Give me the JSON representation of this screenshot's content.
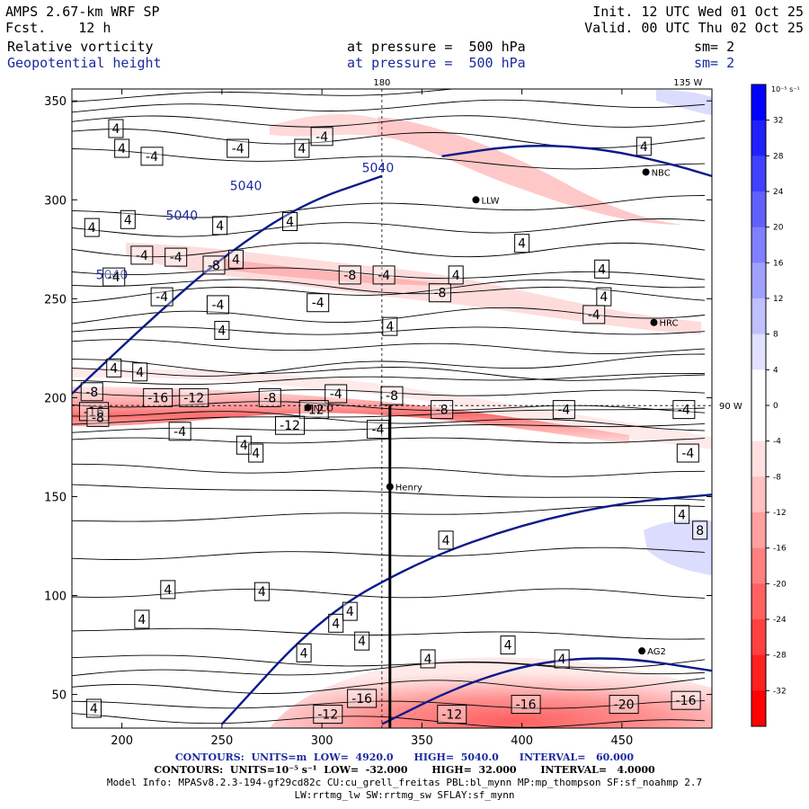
{
  "header": {
    "model": "AMPS 2.67-km WRF SP",
    "fcst": "Fcst.    12 h",
    "init": "Init. 12 UTC Wed 01 Oct 25",
    "valid": "Valid. 00 UTC Thu 02 Oct 25",
    "field1": "Relative vorticity",
    "field1_level": "at pressure =  500 hPa",
    "field1_sm": "sm= 2",
    "field2": "Geopotential height",
    "field2_level": "at pressure =  500 hPa",
    "field2_sm": "sm= 2"
  },
  "footer": {
    "line1": "CONTOURS:  UNITS=m  LOW=  4920.0      HIGH=  5040.0      INTERVAL=   60.000",
    "line2": "CONTOURS:  UNITS=10⁻⁵ s⁻¹  LOW=  -32.000       HIGH=  32.000       INTERVAL=   4.0000",
    "line3": "Model Info: MPASv8.2.3-194-gf29cd82c CU:cu_grell_freitas PBL:bl_mynn MP:mp_thompson SF:sf_noahmp 2.7",
    "line4": "LW:rrtmg_lw SW:rrtmg_sw SFLAY:sf_mynn"
  },
  "chart_data": {
    "type": "heatmap",
    "title": "500 hPa relative vorticity and geopotential height",
    "xlim": [
      175,
      495
    ],
    "ylim": [
      33,
      356
    ],
    "x_ticks": [
      200,
      250,
      300,
      350,
      400,
      450
    ],
    "y_ticks": [
      50,
      100,
      150,
      200,
      250,
      300,
      350
    ],
    "top_labels": [
      {
        "text": "180",
        "x": 330
      },
      {
        "text": "135 W",
        "x": 483
      }
    ],
    "right_labels": [
      {
        "text": "90 W",
        "y": 196
      }
    ],
    "stations": [
      {
        "name": "NCO",
        "x": 293,
        "y": 195
      },
      {
        "name": "Henry",
        "x": 334,
        "y": 155
      },
      {
        "name": "HRC",
        "x": 466,
        "y": 238
      },
      {
        "name": "AG2",
        "x": 460,
        "y": 72
      },
      {
        "name": "NBC",
        "x": 462,
        "y": 314
      },
      {
        "name": "LLW",
        "x": 377,
        "y": 300
      }
    ],
    "height_contours": [
      {
        "value": "5040",
        "points": [
          [
            175,
            202
          ],
          [
            215,
            240
          ],
          [
            250,
            271
          ],
          [
            290,
            298
          ],
          [
            330,
            312
          ]
        ]
      },
      {
        "value": "5040",
        "points": [
          [
            360,
            322
          ],
          [
            400,
            328
          ],
          [
            440,
            326
          ],
          [
            475,
            318
          ],
          [
            495,
            312
          ]
        ]
      },
      {
        "value": "",
        "points": [
          [
            250,
            35
          ],
          [
            300,
            90
          ],
          [
            350,
            118
          ],
          [
            400,
            136
          ],
          [
            450,
            147
          ],
          [
            495,
            151
          ]
        ]
      },
      {
        "value": "",
        "points": [
          [
            330,
            35
          ],
          [
            370,
            55
          ],
          [
            410,
            67
          ],
          [
            450,
            69
          ],
          [
            495,
            62
          ]
        ]
      }
    ],
    "vorticity_bands": [
      {
        "name": "strong negative band",
        "y_center": 196,
        "min": -16
      },
      {
        "name": "moderate negative band",
        "y_center": 258,
        "min": -8
      },
      {
        "name": "southern negative lobe",
        "y_center": 45,
        "min": -20
      }
    ],
    "contour_labels": [
      {
        "text": "4",
        "x": 197,
        "y": 336
      },
      {
        "text": "4",
        "x": 200,
        "y": 326
      },
      {
        "text": "-4",
        "x": 215,
        "y": 322
      },
      {
        "text": "-4",
        "x": 258,
        "y": 326
      },
      {
        "text": "-4",
        "x": 300,
        "y": 332
      },
      {
        "text": "4",
        "x": 290,
        "y": 326
      },
      {
        "text": "4",
        "x": 185,
        "y": 286
      },
      {
        "text": "4",
        "x": 203,
        "y": 290
      },
      {
        "text": "4",
        "x": 249,
        "y": 287
      },
      {
        "text": "4",
        "x": 284,
        "y": 289
      },
      {
        "text": "-4",
        "x": 210,
        "y": 272
      },
      {
        "text": "-4",
        "x": 227,
        "y": 271
      },
      {
        "text": "-8",
        "x": 246,
        "y": 267
      },
      {
        "text": "4",
        "x": 257,
        "y": 270
      },
      {
        "text": "-4",
        "x": 196,
        "y": 261
      },
      {
        "text": "-4",
        "x": 220,
        "y": 251
      },
      {
        "text": "-4",
        "x": 248,
        "y": 247
      },
      {
        "text": "-4",
        "x": 298,
        "y": 248
      },
      {
        "text": "-8",
        "x": 314,
        "y": 262
      },
      {
        "text": "-4",
        "x": 331,
        "y": 262
      },
      {
        "text": "-8",
        "x": 359,
        "y": 253
      },
      {
        "text": "4",
        "x": 367,
        "y": 262
      },
      {
        "text": "4",
        "x": 400,
        "y": 278
      },
      {
        "text": "4",
        "x": 440,
        "y": 265
      },
      {
        "text": "4",
        "x": 441,
        "y": 251
      },
      {
        "text": "-4",
        "x": 436,
        "y": 242
      },
      {
        "text": "4",
        "x": 461,
        "y": 327
      },
      {
        "text": "4",
        "x": 250,
        "y": 234
      },
      {
        "text": "4",
        "x": 334,
        "y": 236
      },
      {
        "text": "4",
        "x": 196,
        "y": 215
      },
      {
        "text": "4",
        "x": 209,
        "y": 213
      },
      {
        "text": "-8",
        "x": 185,
        "y": 203
      },
      {
        "text": "-16",
        "x": 218,
        "y": 200
      },
      {
        "text": "-12",
        "x": 236,
        "y": 200
      },
      {
        "text": "-8",
        "x": 274,
        "y": 200
      },
      {
        "text": "-4",
        "x": 307,
        "y": 202
      },
      {
        "text": "-8",
        "x": 335,
        "y": 201
      },
      {
        "text": "-16",
        "x": 186,
        "y": 193
      },
      {
        "text": "-12",
        "x": 296,
        "y": 194
      },
      {
        "text": "-12",
        "x": 284,
        "y": 186
      },
      {
        "text": "-8",
        "x": 360,
        "y": 194
      },
      {
        "text": "-4",
        "x": 421,
        "y": 194
      },
      {
        "text": "-4",
        "x": 481,
        "y": 194
      },
      {
        "text": "-8",
        "x": 188,
        "y": 190
      },
      {
        "text": "-4",
        "x": 229,
        "y": 183
      },
      {
        "text": "-4",
        "x": 328,
        "y": 184
      },
      {
        "text": "4",
        "x": 261,
        "y": 176
      },
      {
        "text": "4",
        "x": 267,
        "y": 172
      },
      {
        "text": "-4",
        "x": 483,
        "y": 172
      },
      {
        "text": "4",
        "x": 480,
        "y": 141
      },
      {
        "text": "8",
        "x": 489,
        "y": 133
      },
      {
        "text": "4",
        "x": 362,
        "y": 128
      },
      {
        "text": "4",
        "x": 223,
        "y": 103
      },
      {
        "text": "4",
        "x": 270,
        "y": 102
      },
      {
        "text": "4",
        "x": 210,
        "y": 88
      },
      {
        "text": "4",
        "x": 314,
        "y": 92
      },
      {
        "text": "4",
        "x": 307,
        "y": 86
      },
      {
        "text": "4",
        "x": 320,
        "y": 77
      },
      {
        "text": "4",
        "x": 393,
        "y": 75
      },
      {
        "text": "4",
        "x": 291,
        "y": 71
      },
      {
        "text": "4",
        "x": 353,
        "y": 68
      },
      {
        "text": "4",
        "x": 420,
        "y": 68
      },
      {
        "text": "4",
        "x": 186,
        "y": 43
      },
      {
        "text": "-16",
        "x": 320,
        "y": 48
      },
      {
        "text": "-12",
        "x": 303,
        "y": 40
      },
      {
        "text": "-12",
        "x": 365,
        "y": 40
      },
      {
        "text": "-16",
        "x": 402,
        "y": 45
      },
      {
        "text": "-20",
        "x": 451,
        "y": 45
      },
      {
        "text": "-16",
        "x": 482,
        "y": 47
      }
    ]
  },
  "colorbar": {
    "unit": "10⁻⁵ s⁻¹",
    "levels": [
      "36",
      "32",
      "28",
      "24",
      "20",
      "16",
      "12",
      "8",
      "4",
      "0",
      "-4",
      "-8",
      "-12",
      "-16",
      "-20",
      "-24",
      "-28",
      "-32",
      "-36"
    ],
    "colors": [
      "#0000ff",
      "#2020ff",
      "#4040ff",
      "#6060ff",
      "#8080ff",
      "#a0a0ff",
      "#c0c0ff",
      "#e0e0ff",
      "#ffffff",
      "#ffffff",
      "#ffe0e0",
      "#ffc0c0",
      "#ffa0a0",
      "#ff8080",
      "#ff6060",
      "#ff4040",
      "#ff2020",
      "#ff0000"
    ],
    "tick_labels": [
      "32",
      "28",
      "24",
      "20",
      "16",
      "12",
      "8",
      "4",
      "0",
      "-4",
      "-8",
      "-12",
      "-16",
      "-20",
      "-24",
      "-28",
      "-32"
    ]
  }
}
